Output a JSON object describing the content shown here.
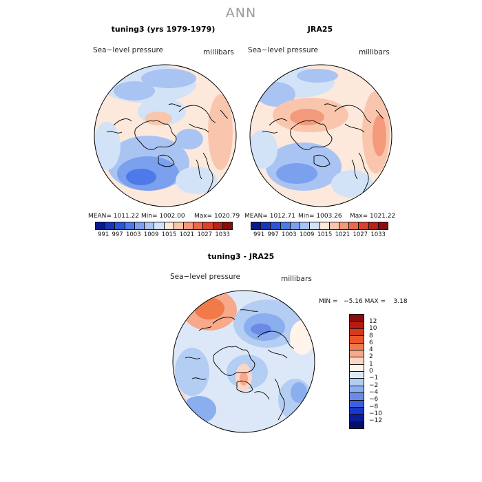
{
  "title": "ANN",
  "panels": [
    {
      "id": "model",
      "title": "tuning3 (yrs 1979-1979)",
      "variable": "Sea−level pressure",
      "units": "millibars",
      "mean": "MEAN= 1011.22",
      "min": "Min= 1002.00",
      "max": "Max= 1020.79"
    },
    {
      "id": "obs",
      "title": "JRA25",
      "variable": "Sea−level pressure",
      "units": "millibars",
      "mean": "MEAN= 1012.71",
      "min": "Min= 1003.26",
      "max": "Max= 1021.22"
    },
    {
      "id": "diff",
      "title": "tuning3 - JRA25",
      "variable": "Sea−level pressure",
      "units": "millibars",
      "minmax": "MIN =   −5.16 MAX =    3.18"
    }
  ],
  "colorbar_abs": {
    "colors": [
      "#0a1a8a",
      "#1a35b8",
      "#2a55d8",
      "#4d7ae8",
      "#7ba0ee",
      "#a9c4f2",
      "#d3e3f7",
      "#fde8dc",
      "#f9c6ad",
      "#f49a7c",
      "#ea6a4a",
      "#d8432a",
      "#b52416",
      "#8a0c0c"
    ],
    "labels": [
      "991",
      "997",
      "1003",
      "1009",
      "1015",
      "1021",
      "1027",
      "1033"
    ]
  },
  "colorbar_diff": {
    "colors": [
      "#8a0c0c",
      "#b81a10",
      "#d83a1a",
      "#e8572a",
      "#f07a4a",
      "#f7a98a",
      "#fbd5c5",
      "#fff3ea",
      "#dce8f8",
      "#b4cdf3",
      "#8aaeee",
      "#6a8ae8",
      "#3d60e0",
      "#1a38c8",
      "#0c1c9a",
      "#050f6a"
    ],
    "labels": [
      "12",
      "10",
      "8",
      "6",
      "4",
      "2",
      "1",
      "0",
      "−1",
      "−2",
      "−4",
      "−6",
      "−8",
      "−10",
      "−12"
    ]
  }
}
